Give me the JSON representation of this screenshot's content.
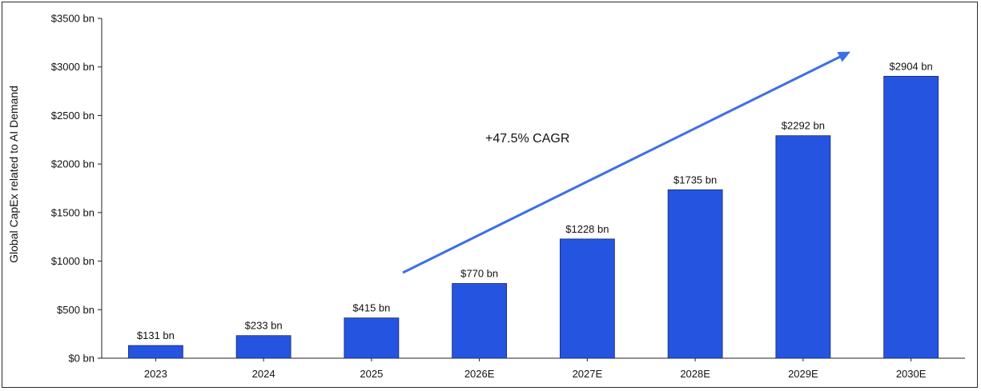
{
  "chart_data": {
    "type": "bar",
    "title": "",
    "xlabel": "",
    "ylabel": "Global CapEx related to AI Demand",
    "categories": [
      "2023",
      "2024",
      "2025",
      "2026E",
      "2027E",
      "2028E",
      "2029E",
      "2030E"
    ],
    "values": [
      131,
      233,
      415,
      770,
      1228,
      1735,
      2292,
      2904
    ],
    "data_labels": [
      "$131 bn",
      "$233 bn",
      "$415 bn",
      "$770 bn",
      "$1228 bn",
      "$1735 bn",
      "$2292 bn",
      "$2904 bn"
    ],
    "ylim": [
      0,
      3500
    ],
    "yticks": [
      0,
      500,
      1000,
      1500,
      2000,
      2500,
      3000,
      3500
    ],
    "ytick_labels": [
      "$0 bn",
      "$500 bn",
      "$1000 bn",
      "$1500 bn",
      "$2000 bn",
      "$2500 bn",
      "$3000 bn",
      "$3500 bn"
    ],
    "grid": false,
    "bar_color": "#2554e0",
    "annotation": {
      "text": "+47.5% CAGR",
      "arrow_color": "#3b6fe8"
    }
  }
}
